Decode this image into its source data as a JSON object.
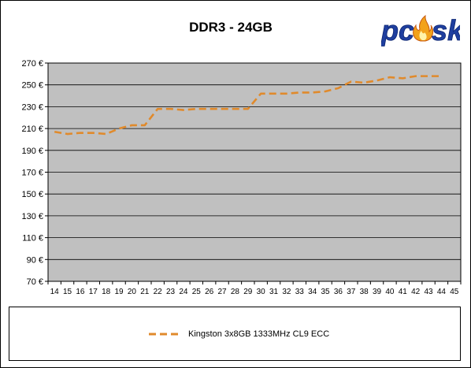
{
  "logo_text": "pcosk",
  "chart_data": {
    "type": "line",
    "title": "DDR3 - 24GB",
    "xlabel": "",
    "ylabel": "",
    "categories": [
      "14",
      "15",
      "16",
      "17",
      "18",
      "19",
      "20",
      "21",
      "22",
      "23",
      "24",
      "25",
      "26",
      "27",
      "28",
      "29",
      "30",
      "31",
      "32",
      "33",
      "34",
      "35",
      "36",
      "37",
      "38",
      "39",
      "40",
      "41",
      "42",
      "43",
      "44",
      "45"
    ],
    "y_ticks": [
      "70 €",
      "90 €",
      "110 €",
      "130 €",
      "150 €",
      "170 €",
      "190 €",
      "210 €",
      "230 €",
      "250 €",
      "270 €"
    ],
    "ylim": [
      70,
      270
    ],
    "grid": "horizontal",
    "legend_position": "bottom",
    "series": [
      {
        "name": "Kingston 3x8GB 1333MHz CL9 ECC",
        "color": "#e08a2c",
        "style": "dashed",
        "values": [
          207,
          205,
          206,
          206,
          205,
          210,
          213,
          213,
          228,
          228,
          227,
          228,
          228,
          228,
          228,
          228,
          242,
          242,
          242,
          243,
          243,
          244,
          247,
          253,
          252,
          254,
          257,
          256,
          258,
          258,
          258,
          null
        ]
      }
    ]
  },
  "colors": {
    "plot_background": "#c0c0c0",
    "gridline": "#000000",
    "series_line": "#e08a2c",
    "logo_blue": "#1f3f9f",
    "logo_flame": "#f2a21a"
  }
}
